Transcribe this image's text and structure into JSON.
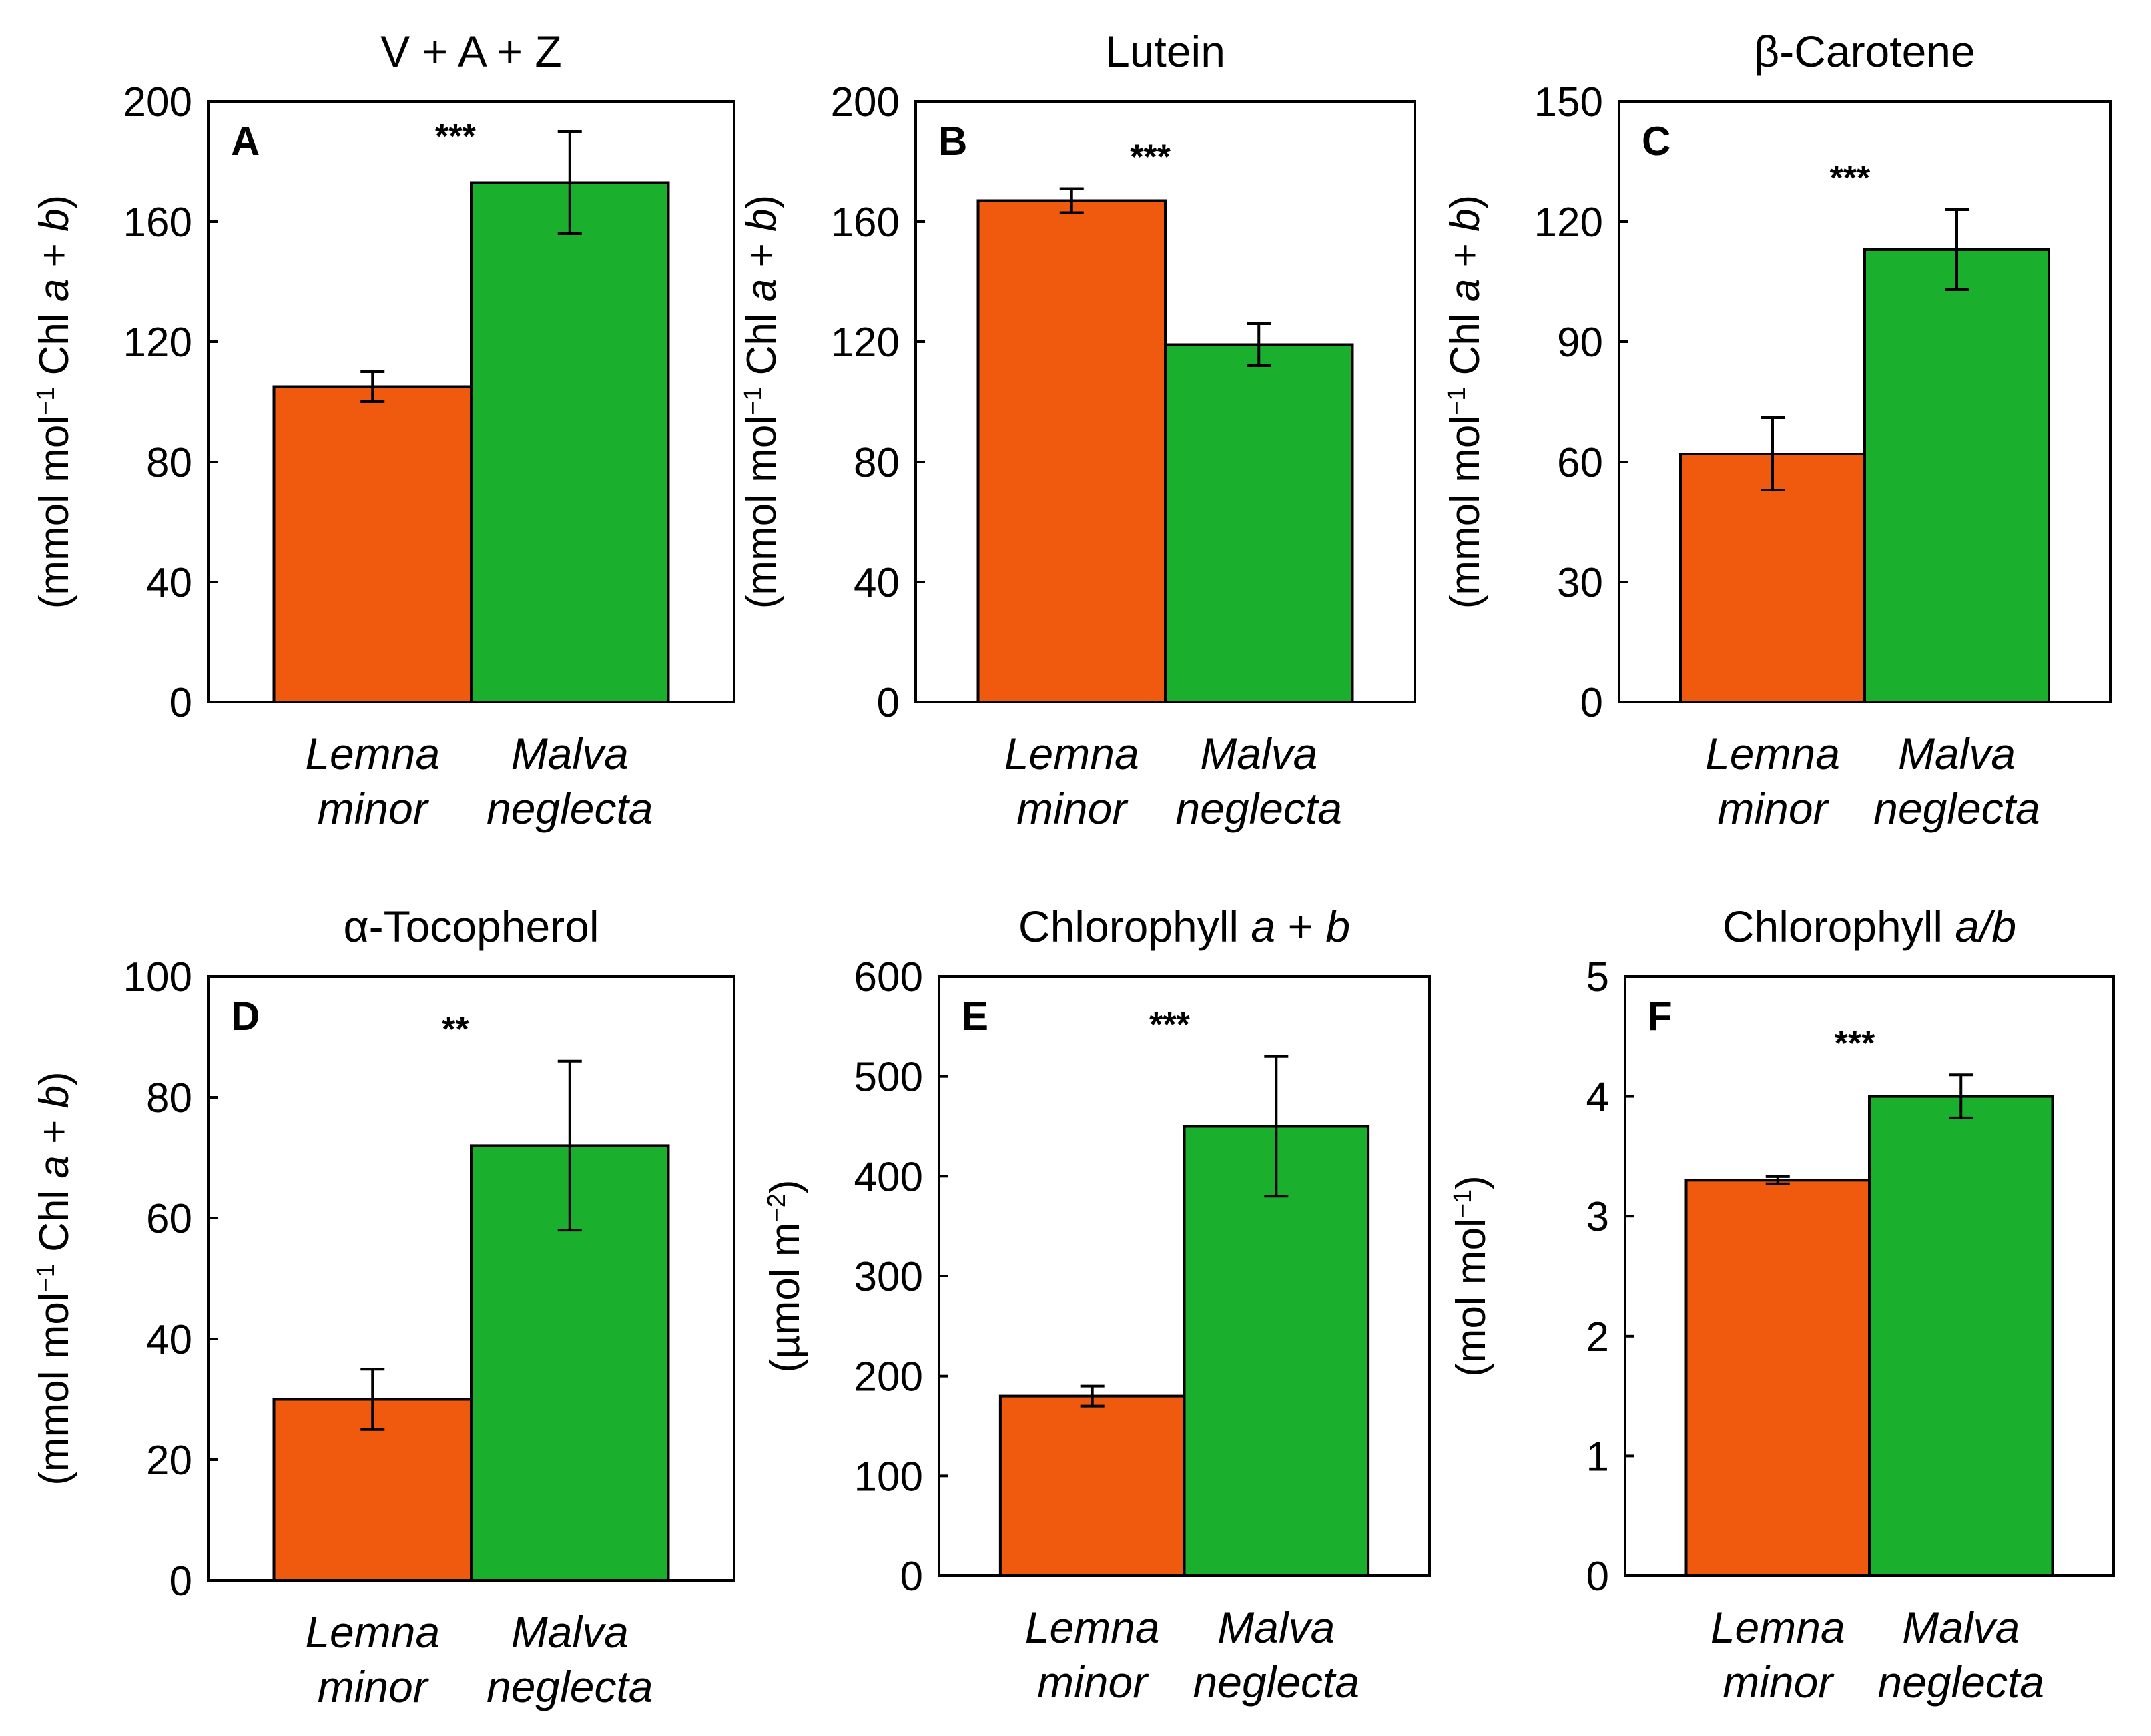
{
  "figure": {
    "colors": {
      "lemna": "#ef5a0e",
      "malva": "#1ab02d",
      "axis": "#000000"
    }
  },
  "chart_data": [
    {
      "id": "A",
      "type": "bar",
      "panel_letter": "A",
      "title": "V + A + Z",
      "title_parts": [
        {
          "text": "V + A + Z",
          "italic": false
        }
      ],
      "ylabel_parts": [
        {
          "text": "(mmol mol",
          "italic": false
        },
        {
          "text": "−1",
          "sup": true
        },
        {
          "text": " Chl ",
          "italic": false
        },
        {
          "text": "a",
          "italic": true
        },
        {
          "text": " + ",
          "italic": false
        },
        {
          "text": "b",
          "italic": true
        },
        {
          "text": ")",
          "italic": false
        }
      ],
      "categories": [
        [
          "Lemna",
          "minor"
        ],
        [
          "Malva",
          "neglecta"
        ]
      ],
      "values": [
        105,
        173
      ],
      "errors": [
        5,
        17
      ],
      "ylim": [
        0,
        200
      ],
      "yticks": [
        "0",
        "40",
        "80",
        "120",
        "160",
        "200"
      ],
      "significance": "***"
    },
    {
      "id": "B",
      "type": "bar",
      "panel_letter": "B",
      "title": "Lutein",
      "title_parts": [
        {
          "text": "Lutein",
          "italic": false
        }
      ],
      "ylabel_parts": [
        {
          "text": "(mmol mol",
          "italic": false
        },
        {
          "text": "−1",
          "sup": true
        },
        {
          "text": " Chl ",
          "italic": false
        },
        {
          "text": "a",
          "italic": true
        },
        {
          "text": " + ",
          "italic": false
        },
        {
          "text": "b",
          "italic": true
        },
        {
          "text": ")",
          "italic": false
        }
      ],
      "categories": [
        [
          "Lemna",
          "minor"
        ],
        [
          "Malva",
          "neglecta"
        ]
      ],
      "values": [
        167,
        119
      ],
      "errors": [
        4,
        7
      ],
      "ylim": [
        0,
        200
      ],
      "yticks": [
        "0",
        "40",
        "80",
        "120",
        "160",
        "200"
      ],
      "significance": "***"
    },
    {
      "id": "C",
      "type": "bar",
      "panel_letter": "C",
      "title": "β-Carotene",
      "title_parts": [
        {
          "text": "β-Carotene",
          "italic": false
        }
      ],
      "ylabel_parts": [
        {
          "text": "(mmol mol",
          "italic": false
        },
        {
          "text": "−1",
          "sup": true
        },
        {
          "text": " Chl ",
          "italic": false
        },
        {
          "text": "a",
          "italic": true
        },
        {
          "text": " + ",
          "italic": false
        },
        {
          "text": "b",
          "italic": true
        },
        {
          "text": ")",
          "italic": false
        }
      ],
      "categories": [
        [
          "Lemna",
          "minor"
        ],
        [
          "Malva",
          "neglecta"
        ]
      ],
      "values": [
        62,
        113
      ],
      "errors": [
        9,
        10
      ],
      "ylim": [
        0,
        150
      ],
      "yticks": [
        "0",
        "30",
        "60",
        "90",
        "120",
        "150"
      ],
      "significance": "***"
    },
    {
      "id": "D",
      "type": "bar",
      "panel_letter": "D",
      "title": "α-Tocopherol",
      "title_parts": [
        {
          "text": "α-Tocopherol",
          "italic": false
        }
      ],
      "ylabel_parts": [
        {
          "text": "(mmol mol",
          "italic": false
        },
        {
          "text": "−1",
          "sup": true
        },
        {
          "text": " Chl ",
          "italic": false
        },
        {
          "text": "a",
          "italic": true
        },
        {
          "text": " + ",
          "italic": false
        },
        {
          "text": "b",
          "italic": true
        },
        {
          "text": ")",
          "italic": false
        }
      ],
      "categories": [
        [
          "Lemna",
          "minor"
        ],
        [
          "Malva",
          "neglecta"
        ]
      ],
      "values": [
        30,
        72
      ],
      "errors": [
        5,
        14
      ],
      "ylim": [
        0,
        100
      ],
      "yticks": [
        "0",
        "20",
        "40",
        "60",
        "80",
        "100"
      ],
      "significance": "**"
    },
    {
      "id": "E",
      "type": "bar",
      "panel_letter": "E",
      "title": "Chlorophyll a + b",
      "title_parts": [
        {
          "text": "Chlorophyll ",
          "italic": false
        },
        {
          "text": "a",
          "italic": true
        },
        {
          "text": " + ",
          "italic": false
        },
        {
          "text": "b",
          "italic": true
        }
      ],
      "ylabel_parts": [
        {
          "text": "(µmol m",
          "italic": false
        },
        {
          "text": "−2",
          "sup": true
        },
        {
          "text": ")",
          "italic": false
        }
      ],
      "categories": [
        [
          "Lemna",
          "minor"
        ],
        [
          "Malva",
          "neglecta"
        ]
      ],
      "values": [
        180,
        450
      ],
      "errors": [
        10,
        70
      ],
      "ylim": [
        0,
        600
      ],
      "yticks": [
        "0",
        "100",
        "200",
        "300",
        "400",
        "500",
        "600"
      ],
      "significance": "***"
    },
    {
      "id": "F",
      "type": "bar",
      "panel_letter": "F",
      "title": "Chlorophyll a/b",
      "title_parts": [
        {
          "text": "Chlorophyll ",
          "italic": false
        },
        {
          "text": "a/b",
          "italic": true
        }
      ],
      "ylabel_parts": [
        {
          "text": "(mol mol",
          "italic": false
        },
        {
          "text": "−1",
          "sup": true
        },
        {
          "text": ")",
          "italic": false
        }
      ],
      "categories": [
        [
          "Lemna",
          "minor"
        ],
        [
          "Malva",
          "neglecta"
        ]
      ],
      "values": [
        3.3,
        4.0
      ],
      "errors": [
        0.03,
        0.18
      ],
      "ylim": [
        0,
        5
      ],
      "yticks": [
        "0",
        "1",
        "2",
        "3",
        "4",
        "5"
      ],
      "significance": "***"
    }
  ]
}
